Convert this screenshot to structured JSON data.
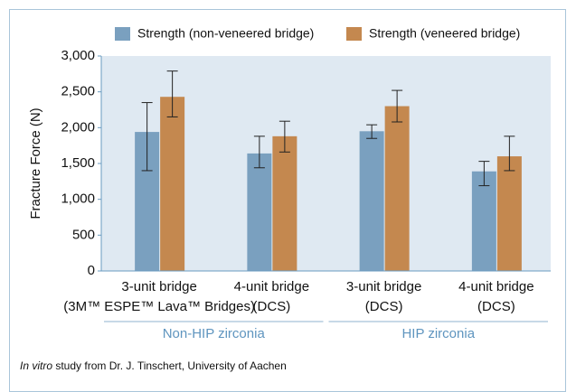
{
  "chart_data": {
    "type": "bar",
    "y_label": "Fracture Force (N)",
    "categories": [
      [
        "3-unit bridge",
        "(3M™ ESPE™ Lava™ Bridges)"
      ],
      [
        "4-unit bridge",
        "(DCS)"
      ],
      [
        "3-unit bridge",
        "(DCS)"
      ],
      [
        "4-unit bridge",
        "(DCS)"
      ]
    ],
    "groups": [
      {
        "label": "Non-HIP zirconia"
      },
      {
        "label": "HIP zirconia"
      }
    ],
    "series": [
      {
        "name": "Strength (non-veneered bridge)",
        "color": "#7aa0bf",
        "values": [
          1940,
          1640,
          1950,
          1390
        ],
        "lower": [
          1400,
          1440,
          1850,
          1190
        ],
        "upper": [
          2350,
          1880,
          2040,
          1530
        ]
      },
      {
        "name": "Strength (veneered bridge)",
        "color": "#c4884f",
        "values": [
          2430,
          1880,
          2300,
          1600
        ],
        "lower": [
          2150,
          1660,
          2080,
          1400
        ],
        "upper": [
          2790,
          2090,
          2520,
          1880
        ]
      }
    ],
    "ylim": [
      0,
      3000
    ],
    "yticks": [
      0,
      {
        "value": 500,
        "label": "500"
      },
      {
        "value": 1000,
        "label": "1,000"
      },
      {
        "value": 1500,
        "label": "1,500"
      },
      {
        "value": 2000,
        "label": "2,000"
      },
      {
        "value": 2500,
        "label": "2,500"
      },
      {
        "value": 3000,
        "label": "3,000"
      }
    ],
    "note": {
      "italic": "In vitro",
      "text": " study from Dr. J. Tinschert, University of Aachen"
    }
  }
}
